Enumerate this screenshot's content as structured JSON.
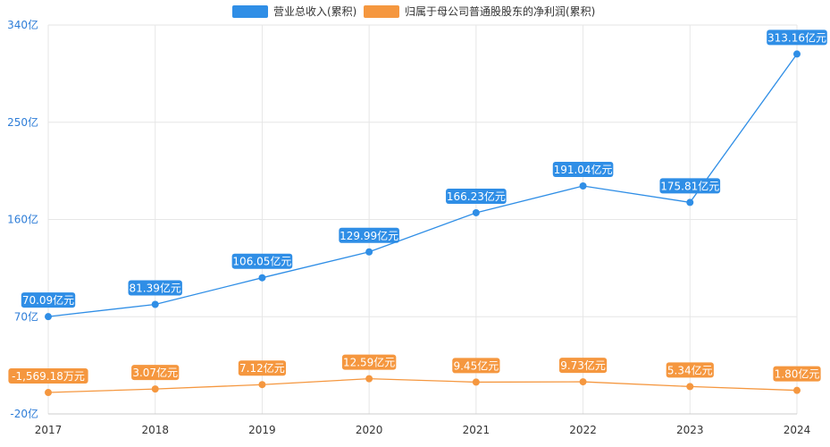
{
  "chart_data": {
    "type": "line",
    "categories": [
      "2017",
      "2018",
      "2019",
      "2020",
      "2021",
      "2022",
      "2023",
      "2024"
    ],
    "y_ticks": [
      "340亿",
      "250亿",
      "160亿",
      "70亿",
      "-20亿"
    ],
    "ylim": [
      -20,
      340
    ],
    "y_unit": "亿",
    "grid": true,
    "legend_position": "top",
    "series": [
      {
        "name": "营业总收入(累积)",
        "color": "#2f8ee6",
        "values": [
          70.09,
          81.39,
          106.05,
          129.99,
          166.23,
          191.04,
          175.81,
          313.16
        ],
        "labels": [
          "70.09亿元",
          "81.39亿元",
          "106.05亿元",
          "129.99亿元",
          "166.23亿元",
          "191.04亿元",
          "175.81亿元",
          "313.16亿元"
        ]
      },
      {
        "name": "归属于母公司普通股股东的净利润(累积)",
        "color": "#f5973f",
        "values": [
          -0.156918,
          3.07,
          7.12,
          12.59,
          9.45,
          9.73,
          5.34,
          1.8
        ],
        "labels": [
          "-1,569.18万元",
          "3.07亿元",
          "7.12亿元",
          "12.59亿元",
          "9.45亿元",
          "9.73亿元",
          "5.34亿元",
          "1.80亿元"
        ]
      }
    ]
  }
}
